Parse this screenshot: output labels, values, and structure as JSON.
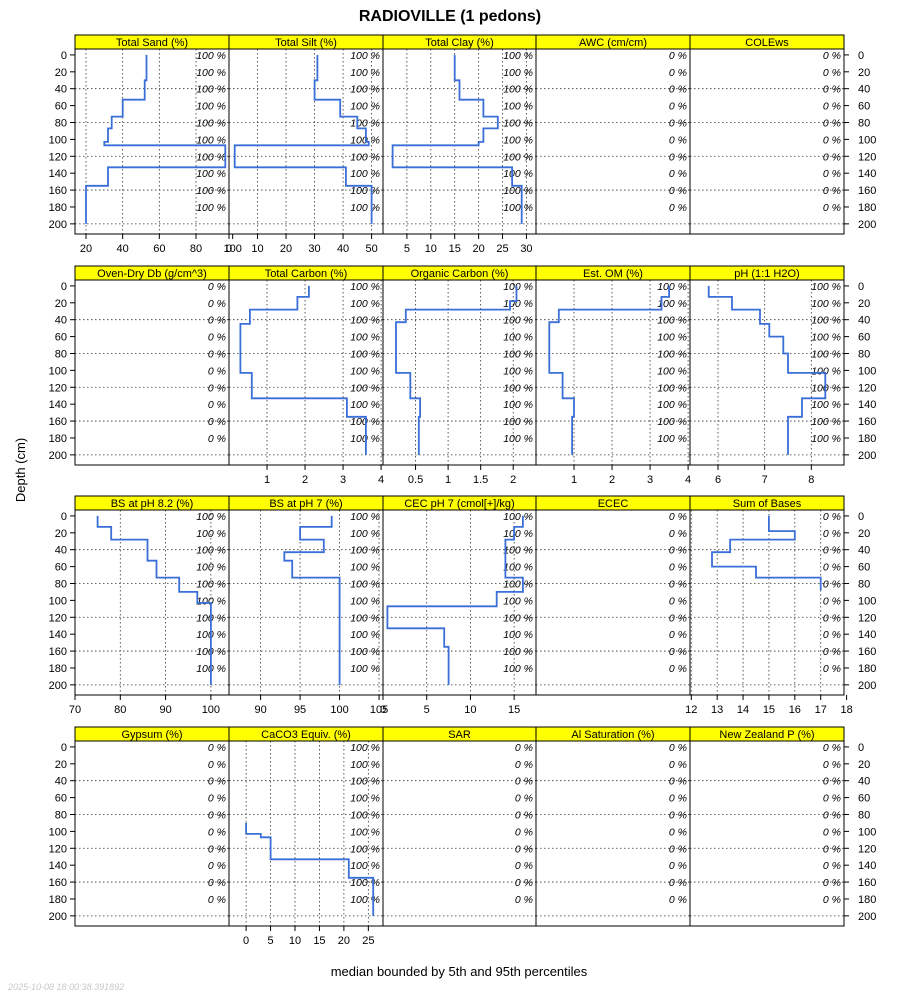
{
  "chart_data": {
    "type": "line",
    "title": "RADIOVILLE (1 pedons)",
    "ylabel": "Depth (cm)",
    "xlabel": "median bounded by 5th and 95th percentiles",
    "timestamp": "2025-10-08 18:00:38.391892",
    "depth_range": [
      -7,
      212
    ],
    "depth_ticks": [
      0,
      20,
      40,
      60,
      80,
      100,
      120,
      140,
      160,
      180,
      200
    ],
    "grid": true,
    "line_color": "#3a6fd8",
    "strip_color": "#ffff00",
    "pct_ticks": [
      0,
      20,
      40,
      60,
      80,
      100,
      120,
      140,
      160,
      180
    ],
    "rows": [
      {
        "xticks": [
          [
            20,
            40,
            60,
            80,
            100
          ],
          [
            0,
            10,
            20,
            30,
            40,
            50
          ],
          [
            5,
            10,
            15,
            20,
            25,
            30
          ],
          [],
          []
        ],
        "panels": [
          {
            "name": "Total Sand (%)",
            "xlim": [
              14,
              98
            ],
            "pct_label": "100 %",
            "profile": [
              [
                53,
                0
              ],
              [
                53,
                30
              ],
              [
                52,
                30
              ],
              [
                52,
                53
              ],
              [
                40,
                53
              ],
              [
                40,
                73
              ],
              [
                34,
                73
              ],
              [
                34,
                87
              ],
              [
                32,
                87
              ],
              [
                32,
                103
              ],
              [
                30,
                103
              ],
              [
                30,
                107
              ],
              [
                96,
                107
              ],
              [
                96,
                133
              ],
              [
                32,
                133
              ],
              [
                32,
                155
              ],
              [
                20,
                155
              ],
              [
                20,
                200
              ]
            ]
          },
          {
            "name": "Total Silt (%)",
            "xlim": [
              0,
              54
            ],
            "pct_label": "100 %",
            "profile": [
              [
                31,
                0
              ],
              [
                31,
                30
              ],
              [
                30,
                30
              ],
              [
                30,
                53
              ],
              [
                39,
                53
              ],
              [
                39,
                73
              ],
              [
                45,
                73
              ],
              [
                45,
                87
              ],
              [
                48,
                87
              ],
              [
                48,
                103
              ],
              [
                49,
                103
              ],
              [
                49,
                107
              ],
              [
                2,
                107
              ],
              [
                2,
                133
              ],
              [
                41,
                133
              ],
              [
                41,
                155
              ],
              [
                50,
                155
              ],
              [
                50,
                200
              ]
            ]
          },
          {
            "name": "Total Clay (%)",
            "xlim": [
              0,
              32
            ],
            "pct_label": "100 %",
            "profile": [
              [
                15,
                0
              ],
              [
                15,
                30
              ],
              [
                16,
                30
              ],
              [
                16,
                53
              ],
              [
                21,
                53
              ],
              [
                21,
                73
              ],
              [
                24,
                73
              ],
              [
                24,
                87
              ],
              [
                21,
                87
              ],
              [
                21,
                103
              ],
              [
                20,
                103
              ],
              [
                20,
                107
              ],
              [
                2,
                107
              ],
              [
                2,
                133
              ],
              [
                27,
                133
              ],
              [
                27,
                155
              ],
              [
                29,
                155
              ],
              [
                29,
                200
              ]
            ]
          },
          {
            "name": "AWC (cm/cm)",
            "xlim": [
              0,
              1
            ],
            "pct_label": "0 %",
            "profile": []
          },
          {
            "name": "COLEws",
            "xlim": [
              0,
              1
            ],
            "pct_label": "0 %",
            "profile": []
          }
        ]
      },
      {
        "xticks": [
          [],
          [
            1,
            2,
            3,
            4
          ],
          [
            0.5,
            1.0,
            1.5,
            2.0
          ],
          [
            1,
            2,
            3,
            4
          ],
          [
            6,
            7,
            8
          ]
        ],
        "panels": [
          {
            "name": "Oven-Dry Db (g/cm^3)",
            "xlim": [
              0,
              1
            ],
            "pct_label": "0 %",
            "profile": []
          },
          {
            "name": "Total Carbon (%)",
            "xlim": [
              0,
              4.05
            ],
            "pct_label": "100 %",
            "profile": [
              [
                2.1,
                0
              ],
              [
                2.1,
                13
              ],
              [
                1.8,
                13
              ],
              [
                1.8,
                28
              ],
              [
                0.55,
                28
              ],
              [
                0.55,
                45
              ],
              [
                0.3,
                45
              ],
              [
                0.3,
                103
              ],
              [
                0.6,
                103
              ],
              [
                0.6,
                133
              ],
              [
                3.1,
                133
              ],
              [
                3.1,
                155
              ],
              [
                3.6,
                155
              ],
              [
                3.6,
                200
              ]
            ]
          },
          {
            "name": "Organic Carbon (%)",
            "xlim": [
              0,
              2.35
            ],
            "pct_label": "100 %",
            "profile": [
              [
                2.05,
                0
              ],
              [
                2.05,
                18
              ],
              [
                1.95,
                18
              ],
              [
                1.95,
                28
              ],
              [
                0.35,
                28
              ],
              [
                0.35,
                43
              ],
              [
                0.2,
                43
              ],
              [
                0.2,
                103
              ],
              [
                0.42,
                103
              ],
              [
                0.42,
                133
              ],
              [
                0.57,
                133
              ],
              [
                0.57,
                155
              ],
              [
                0.55,
                155
              ],
              [
                0.55,
                200
              ]
            ]
          },
          {
            "name": "Est. OM (%)",
            "xlim": [
              0,
              4.05
            ],
            "pct_label": "100 %",
            "profile": [
              [
                3.5,
                0
              ],
              [
                3.5,
                13
              ],
              [
                3.3,
                13
              ],
              [
                3.3,
                28
              ],
              [
                0.6,
                28
              ],
              [
                0.6,
                43
              ],
              [
                0.35,
                43
              ],
              [
                0.35,
                103
              ],
              [
                0.7,
                103
              ],
              [
                0.7,
                133
              ],
              [
                1.0,
                133
              ],
              [
                1.0,
                155
              ],
              [
                0.95,
                155
              ],
              [
                0.95,
                200
              ]
            ]
          },
          {
            "name": "pH (1:1 H2O)",
            "xlim": [
              5.4,
              8.7
            ],
            "pct_label": "100 %",
            "profile": [
              [
                5.8,
                0
              ],
              [
                5.8,
                13
              ],
              [
                6.3,
                13
              ],
              [
                6.3,
                28
              ],
              [
                6.9,
                28
              ],
              [
                6.9,
                45
              ],
              [
                7.1,
                45
              ],
              [
                7.1,
                60
              ],
              [
                7.4,
                60
              ],
              [
                7.4,
                80
              ],
              [
                7.5,
                80
              ],
              [
                7.5,
                103
              ],
              [
                8.3,
                103
              ],
              [
                8.3,
                133
              ],
              [
                7.8,
                133
              ],
              [
                7.8,
                155
              ],
              [
                7.5,
                155
              ],
              [
                7.5,
                200
              ]
            ]
          }
        ]
      },
      {
        "xticks": [
          [
            70,
            80,
            90,
            100
          ],
          [
            90,
            95,
            100,
            105
          ],
          [
            0,
            5,
            10,
            15
          ],
          [],
          [
            12,
            13,
            14,
            15,
            16,
            17,
            18
          ]
        ],
        "panels": [
          {
            "name": "BS at pH 8.2 (%)",
            "xlim": [
              70,
              104
            ],
            "pct_label": "100 %",
            "profile": [
              [
                75,
                0
              ],
              [
                75,
                13
              ],
              [
                78,
                13
              ],
              [
                78,
                28
              ],
              [
                86,
                28
              ],
              [
                86,
                53
              ],
              [
                88,
                53
              ],
              [
                88,
                73
              ],
              [
                93,
                73
              ],
              [
                93,
                90
              ],
              [
                97,
                90
              ],
              [
                97,
                103
              ],
              [
                100,
                103
              ],
              [
                100,
                200
              ]
            ]
          },
          {
            "name": "BS at pH 7 (%)",
            "xlim": [
              86,
              105.5
            ],
            "pct_label": "100 %",
            "profile": [
              [
                99,
                0
              ],
              [
                99,
                13
              ],
              [
                95,
                13
              ],
              [
                95,
                28
              ],
              [
                98,
                28
              ],
              [
                98,
                43
              ],
              [
                93,
                43
              ],
              [
                93,
                53
              ],
              [
                94,
                53
              ],
              [
                94,
                73
              ],
              [
                100,
                73
              ],
              [
                100,
                200
              ]
            ]
          },
          {
            "name": "CEC pH 7 (cmol[+]/kg)",
            "xlim": [
              0,
              17.5
            ],
            "pct_label": "100 %",
            "profile": [
              [
                16,
                0
              ],
              [
                16,
                13
              ],
              [
                15,
                13
              ],
              [
                15,
                28
              ],
              [
                14,
                28
              ],
              [
                14,
                73
              ],
              [
                16,
                73
              ],
              [
                16,
                90
              ],
              [
                13,
                90
              ],
              [
                13,
                107
              ],
              [
                0.5,
                107
              ],
              [
                0.5,
                133
              ],
              [
                7,
                133
              ],
              [
                7,
                155
              ],
              [
                7.5,
                155
              ],
              [
                7.5,
                200
              ]
            ]
          },
          {
            "name": "ECEC",
            "xlim": [
              0,
              1
            ],
            "pct_label": "0 %",
            "profile": []
          },
          {
            "name": "Sum of Bases",
            "xlim": [
              11.95,
              17.9
            ],
            "pct_label": "0 %",
            "profile": [
              [
                15,
                0
              ],
              [
                15,
                18
              ],
              [
                16,
                18
              ],
              [
                16,
                28
              ],
              [
                13.5,
                28
              ],
              [
                13.5,
                43
              ],
              [
                12.8,
                43
              ],
              [
                12.8,
                60
              ],
              [
                14.5,
                60
              ],
              [
                14.5,
                73
              ],
              [
                17,
                73
              ],
              [
                17,
                88
              ]
            ]
          }
        ]
      },
      {
        "xticks": [
          [],
          [
            0,
            5,
            10,
            15,
            20,
            25
          ],
          [],
          [],
          []
        ],
        "panels": [
          {
            "name": "Gypsum (%)",
            "xlim": [
              0,
              1
            ],
            "pct_label": "0 %",
            "profile": []
          },
          {
            "name": "CaCO3 Equiv. (%)",
            "xlim": [
              -3.5,
              28
            ],
            "pct_label": "100 %",
            "profile": [
              [
                0,
                90
              ],
              [
                0,
                103
              ],
              [
                3,
                103
              ],
              [
                3,
                107
              ],
              [
                5,
                107
              ],
              [
                5,
                133
              ],
              [
                21,
                133
              ],
              [
                21,
                155
              ],
              [
                26,
                155
              ],
              [
                26,
                200
              ]
            ]
          },
          {
            "name": "SAR",
            "xlim": [
              0,
              1
            ],
            "pct_label": "0 %",
            "profile": []
          },
          {
            "name": "Al Saturation (%)",
            "xlim": [
              0,
              1
            ],
            "pct_label": "0 %",
            "profile": []
          },
          {
            "name": "New Zealand P (%)",
            "xlim": [
              0,
              1
            ],
            "pct_label": "0 %",
            "profile": []
          }
        ]
      }
    ]
  }
}
